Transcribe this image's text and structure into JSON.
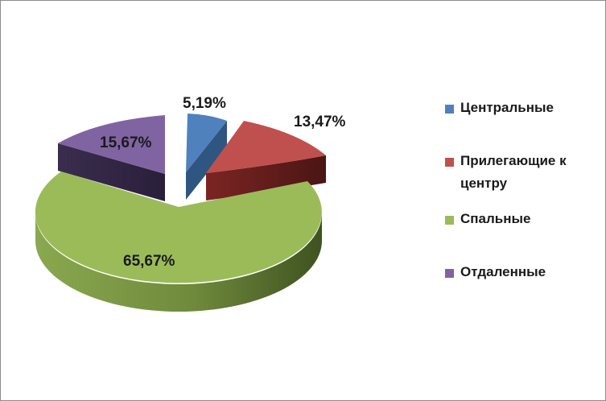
{
  "chart_data": {
    "type": "pie",
    "style": "3d-exploded",
    "categories": [
      "Центральные",
      "Прилегающие к центру",
      "Спальные",
      "Отдаленные"
    ],
    "values": [
      5.19,
      13.47,
      65.67,
      15.67
    ],
    "data_labels": [
      "5,19%",
      "13,47%",
      "65,67%",
      "15,67%"
    ],
    "colors": [
      "#4f81bd",
      "#c0504d",
      "#9bbb59",
      "#8064a2"
    ],
    "legend": {
      "position": "right",
      "entries": [
        "Центральные",
        "Прилегающие к центру",
        "Спальные",
        "Отдаленные"
      ]
    }
  }
}
